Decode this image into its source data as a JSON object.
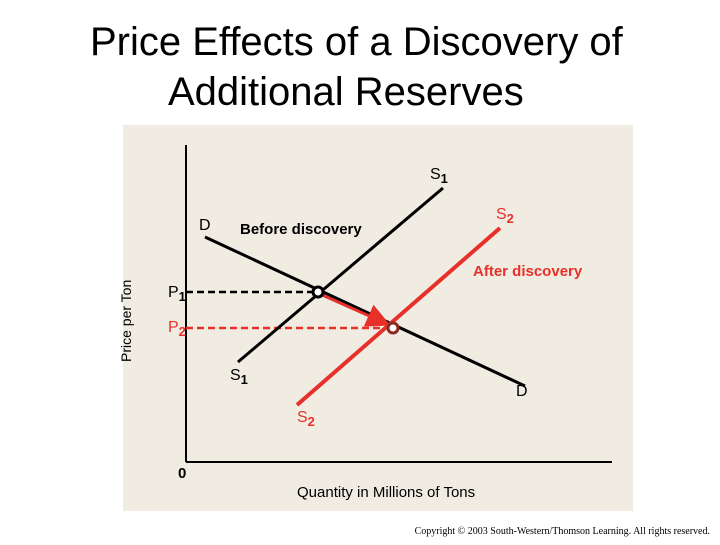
{
  "title": [
    "Price Effects of a Discovery of",
    "Additional Reserves"
  ],
  "axes": {
    "y_label": "Price per Ton",
    "x_label": "Quantity in Millions of Tons",
    "origin": "0"
  },
  "labels": {
    "s1_top": [
      "S",
      "1"
    ],
    "s2_top": [
      "S",
      "2"
    ],
    "d_top": "D",
    "before": "Before discovery",
    "after": "After discovery",
    "p1": [
      "P",
      "1"
    ],
    "p2": [
      "P",
      "2"
    ],
    "s1_bottom": [
      "S",
      "1"
    ],
    "s2_bottom": [
      "S",
      "2"
    ],
    "d_bottom": "D"
  },
  "copyright": "Copyright © 2003 South-Western/Thomson Learning. All rights reserved."
}
